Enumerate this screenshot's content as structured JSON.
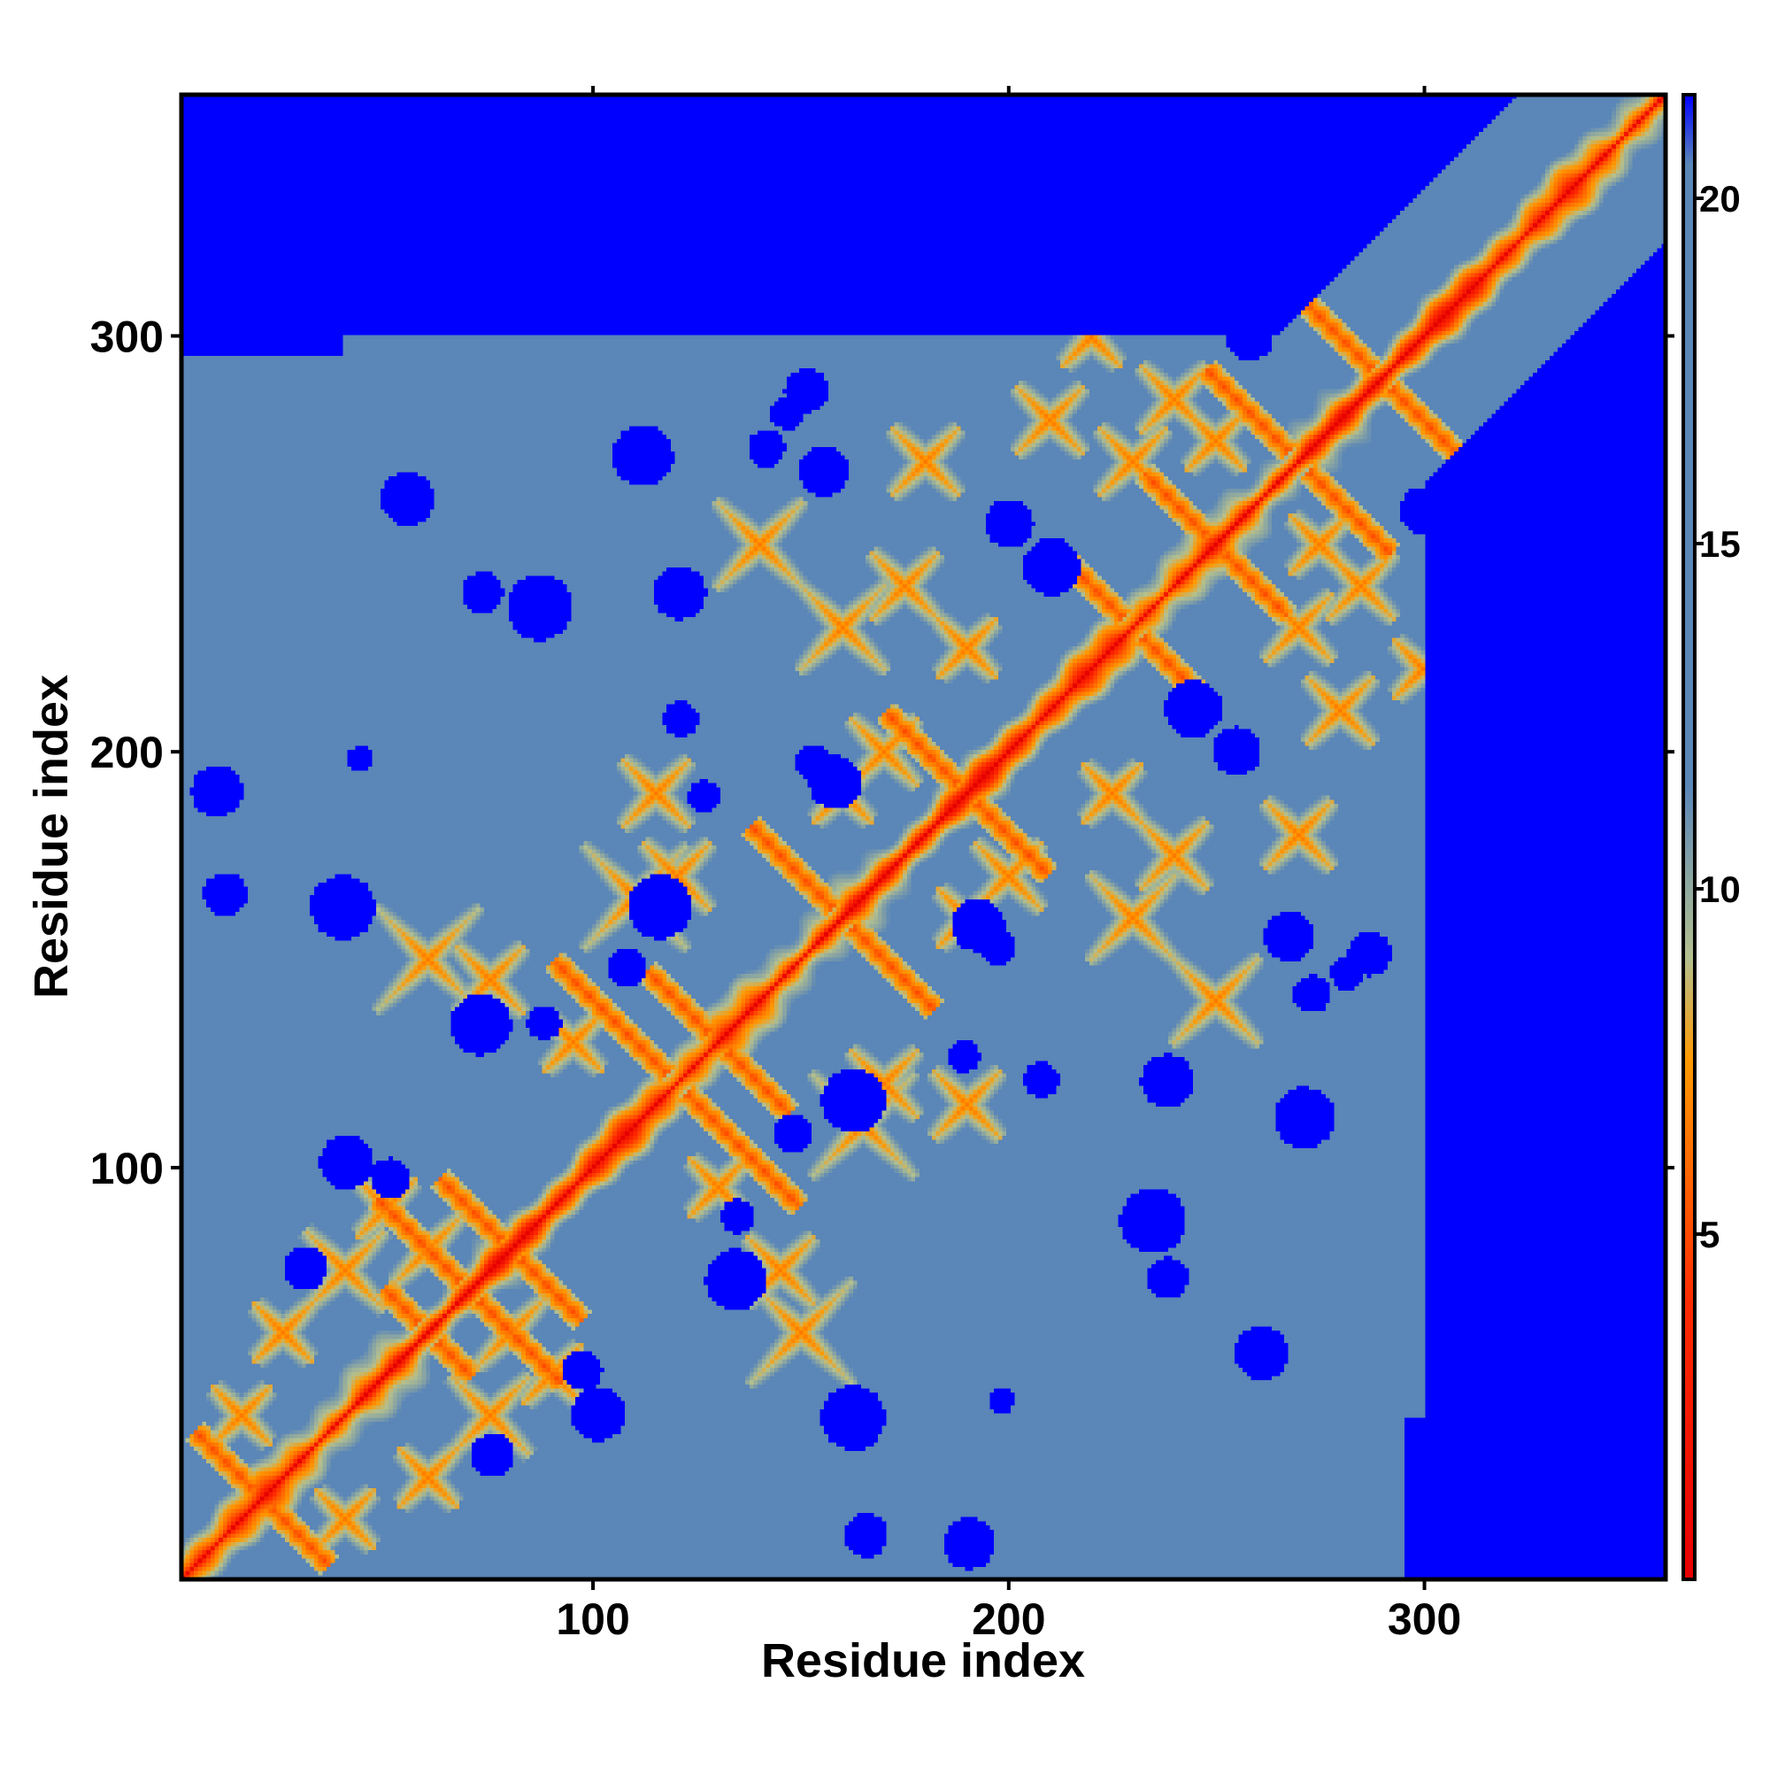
{
  "chart_data": {
    "type": "heatmap",
    "title": "",
    "xlabel": "Residue index",
    "ylabel": "Residue index",
    "n_residues": 358,
    "xlim": [
      1,
      358
    ],
    "ylim": [
      1,
      358
    ],
    "xticks": [
      100,
      200,
      300
    ],
    "yticks": [
      100,
      200,
      300
    ],
    "colorbar": {
      "range": [
        0,
        21.5
      ],
      "ticks": [
        5,
        10,
        15,
        20
      ],
      "colors": {
        "min": "#e60000",
        "near": "#ff8c00",
        "mid": "#a9b98a",
        "far": "#5a86b8",
        "beyond": "#0000ff"
      },
      "stops": [
        [
          0,
          "#e60000"
        ],
        [
          4,
          "#ff2a00"
        ],
        [
          7.5,
          "#ff9900"
        ],
        [
          9,
          "#b4c08e"
        ],
        [
          11.5,
          "#5a86b8"
        ],
        [
          20.5,
          "#5a86b8"
        ],
        [
          21.5,
          "#0000ff"
        ]
      ]
    },
    "cutoff": 20.5,
    "background_color": "#0000ff",
    "contacts": {
      "anti": [
        [
          20,
          33
        ],
        [
          60,
          22
        ],
        [
          70,
          45
        ],
        [
          80,
          35
        ],
        [
          120,
          60
        ],
        [
          130,
          35
        ],
        [
          160,
          45
        ],
        [
          190,
          40
        ],
        [
          230,
          40
        ],
        [
          250,
          35
        ],
        [
          270,
          45
        ],
        [
          290,
          40
        ]
      ],
      "off": [
        [
          15,
          40,
          10
        ],
        [
          25,
          60,
          10
        ],
        [
          40,
          75,
          14
        ],
        [
          60,
          80,
          12
        ],
        [
          60,
          150,
          18
        ],
        [
          75,
          145,
          12
        ],
        [
          110,
          165,
          18
        ],
        [
          115,
          190,
          12
        ],
        [
          140,
          250,
          15
        ],
        [
          160,
          230,
          15
        ],
        [
          170,
          200,
          12
        ],
        [
          175,
          240,
          12
        ],
        [
          180,
          270,
          12
        ],
        [
          210,
          280,
          12
        ],
        [
          240,
          285,
          12
        ],
        [
          220,
          300,
          10
        ],
        [
          230,
          270,
          12
        ],
        [
          50,
          90,
          10
        ],
        [
          95,
          130,
          10
        ],
        [
          120,
          170,
          12
        ],
        [
          160,
          190,
          10
        ],
        [
          190,
          225,
          10
        ],
        [
          250,
          275,
          10
        ]
      ]
    },
    "far_blob_count": 55
  }
}
